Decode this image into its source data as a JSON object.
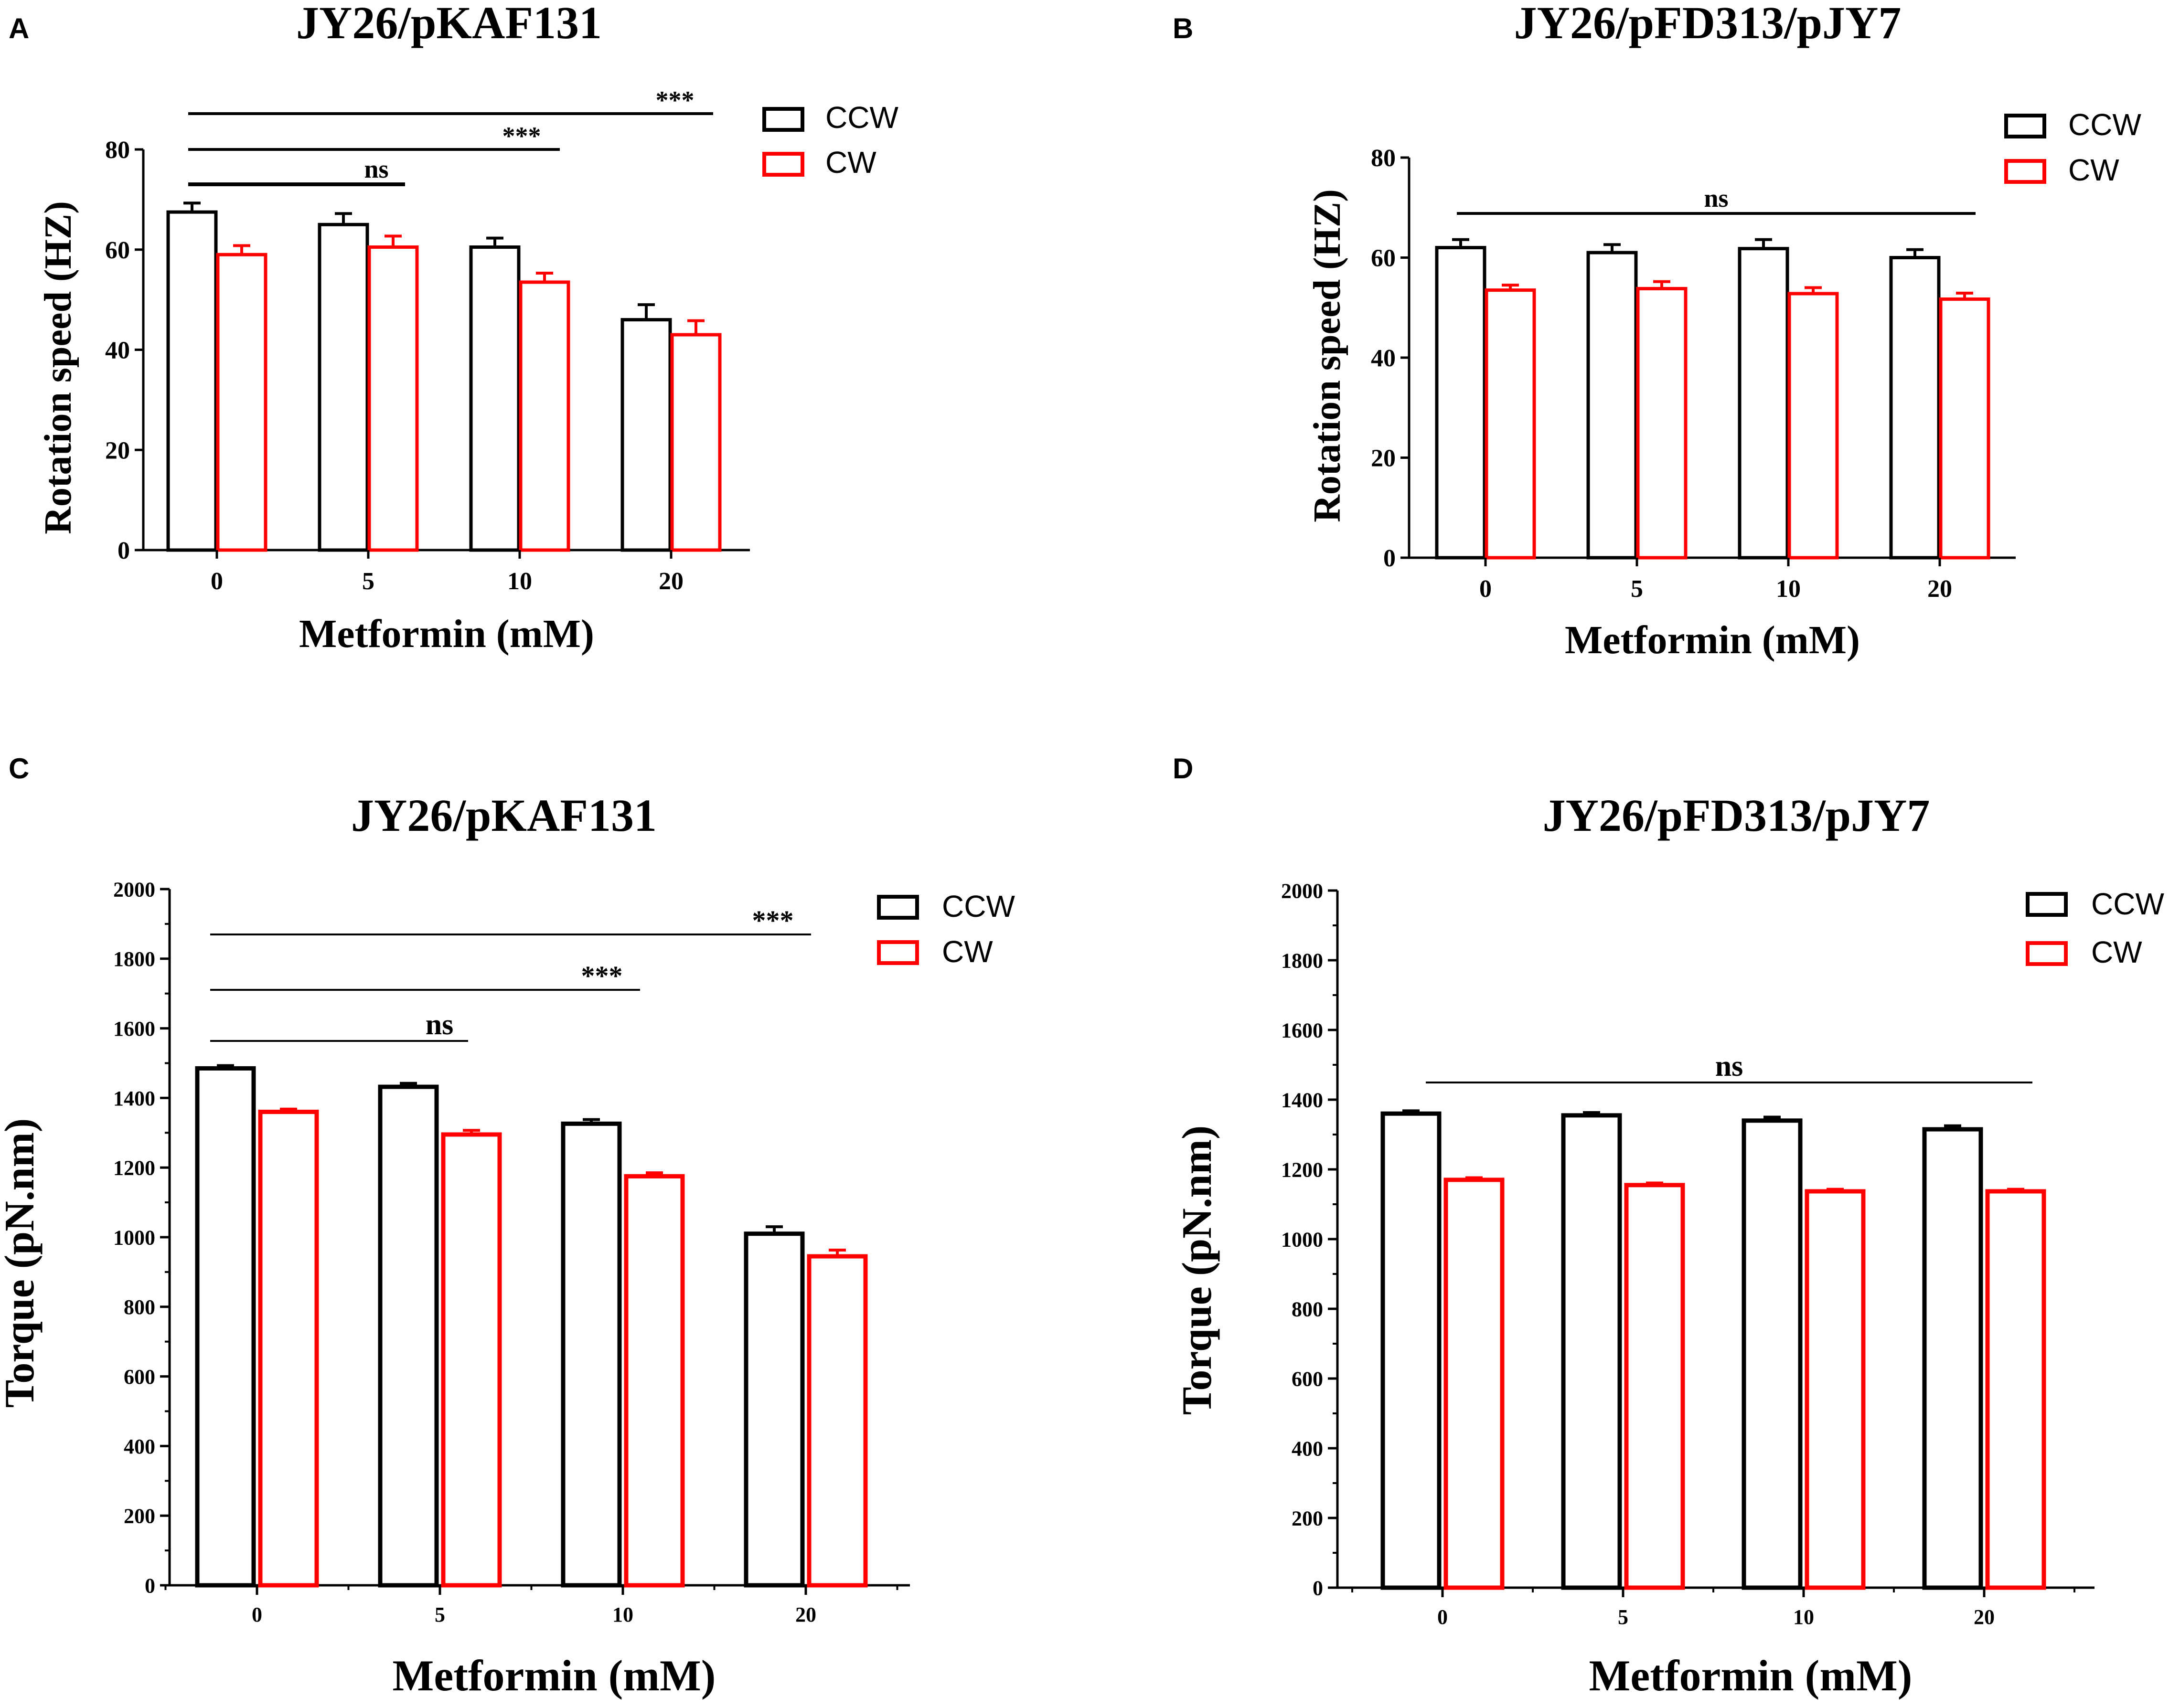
{
  "colors": {
    "ccw": "#000000",
    "cw": "#ff0000",
    "axis": "#000000"
  },
  "chart_data": [
    {
      "panel": "A",
      "type": "bar",
      "title": "JY26/pKAF131",
      "xlabel": "Metformin (mM)",
      "ylabel": "Rotation speed (HZ)",
      "categories": [
        "0",
        "5",
        "10",
        "20"
      ],
      "ylim": [
        0,
        80
      ],
      "yticks": [
        0,
        20,
        40,
        60,
        80
      ],
      "series": [
        {
          "name": "CCW",
          "color": "#000000",
          "values": [
            67.5,
            65,
            60.5,
            46
          ],
          "errors": [
            1.8,
            2.2,
            1.8,
            3.0
          ]
        },
        {
          "name": "CW",
          "color": "#ff0000",
          "values": [
            59,
            60.5,
            53.5,
            43
          ],
          "errors": [
            1.8,
            2.2,
            1.8,
            2.8
          ]
        }
      ],
      "significance": [
        {
          "from": "0",
          "to": "5",
          "label": "ns"
        },
        {
          "from": "0",
          "to": "10",
          "label": "***"
        },
        {
          "from": "0",
          "to": "20",
          "label": "***"
        }
      ]
    },
    {
      "panel": "B",
      "type": "bar",
      "title": "JY26/pFD313/pJY7",
      "xlabel": "Metformin (mM)",
      "ylabel": "Rotation speed (HZ)",
      "categories": [
        "0",
        "5",
        "10",
        "20"
      ],
      "ylim": [
        0,
        80
      ],
      "yticks": [
        0,
        20,
        40,
        60,
        80
      ],
      "series": [
        {
          "name": "CCW",
          "color": "#000000",
          "values": [
            62,
            61,
            61.8,
            60
          ],
          "errors": [
            1.6,
            1.6,
            1.8,
            1.6
          ]
        },
        {
          "name": "CW",
          "color": "#ff0000",
          "values": [
            53.5,
            53.8,
            52.8,
            51.7
          ],
          "errors": [
            1.0,
            1.4,
            1.2,
            1.2
          ]
        }
      ],
      "significance": [
        {
          "from": "0",
          "to": "20",
          "label": "ns"
        }
      ]
    },
    {
      "panel": "C",
      "type": "bar",
      "title": "JY26/pKAF131",
      "xlabel": "Metformin (mM)",
      "ylabel": "Torque (pN.nm)",
      "categories": [
        "0",
        "5",
        "10",
        "20"
      ],
      "ylim": [
        0,
        2000
      ],
      "yticks": [
        0,
        200,
        400,
        600,
        800,
        1000,
        1200,
        1400,
        1600,
        1800,
        2000
      ],
      "series": [
        {
          "name": "CCW",
          "color": "#000000",
          "values": [
            1485,
            1432,
            1326,
            1010
          ],
          "errors": [
            8,
            10,
            12,
            20
          ]
        },
        {
          "name": "CW",
          "color": "#ff0000",
          "values": [
            1360,
            1295,
            1175,
            945
          ],
          "errors": [
            8,
            12,
            10,
            18
          ]
        }
      ],
      "significance": [
        {
          "from": "0",
          "to": "5",
          "label": "ns"
        },
        {
          "from": "0",
          "to": "10",
          "label": "***"
        },
        {
          "from": "0",
          "to": "20",
          "label": "***"
        }
      ]
    },
    {
      "panel": "D",
      "type": "bar",
      "title": "JY26/pFD313/pJY7",
      "xlabel": "Metformin (mM)",
      "ylabel": "Torque (pN.nm)",
      "categories": [
        "0",
        "5",
        "10",
        "20"
      ],
      "ylim": [
        0,
        2000
      ],
      "yticks": [
        0,
        200,
        400,
        600,
        800,
        1000,
        1200,
        1400,
        1600,
        1800,
        2000
      ],
      "series": [
        {
          "name": "CCW",
          "color": "#000000",
          "values": [
            1360,
            1355,
            1340,
            1315
          ],
          "errors": [
            8,
            8,
            10,
            10
          ]
        },
        {
          "name": "CW",
          "color": "#ff0000",
          "values": [
            1170,
            1155,
            1137,
            1137
          ],
          "errors": [
            6,
            6,
            6,
            6
          ]
        }
      ],
      "significance": [
        {
          "from": "0",
          "to": "20",
          "label": "ns"
        }
      ]
    }
  ]
}
